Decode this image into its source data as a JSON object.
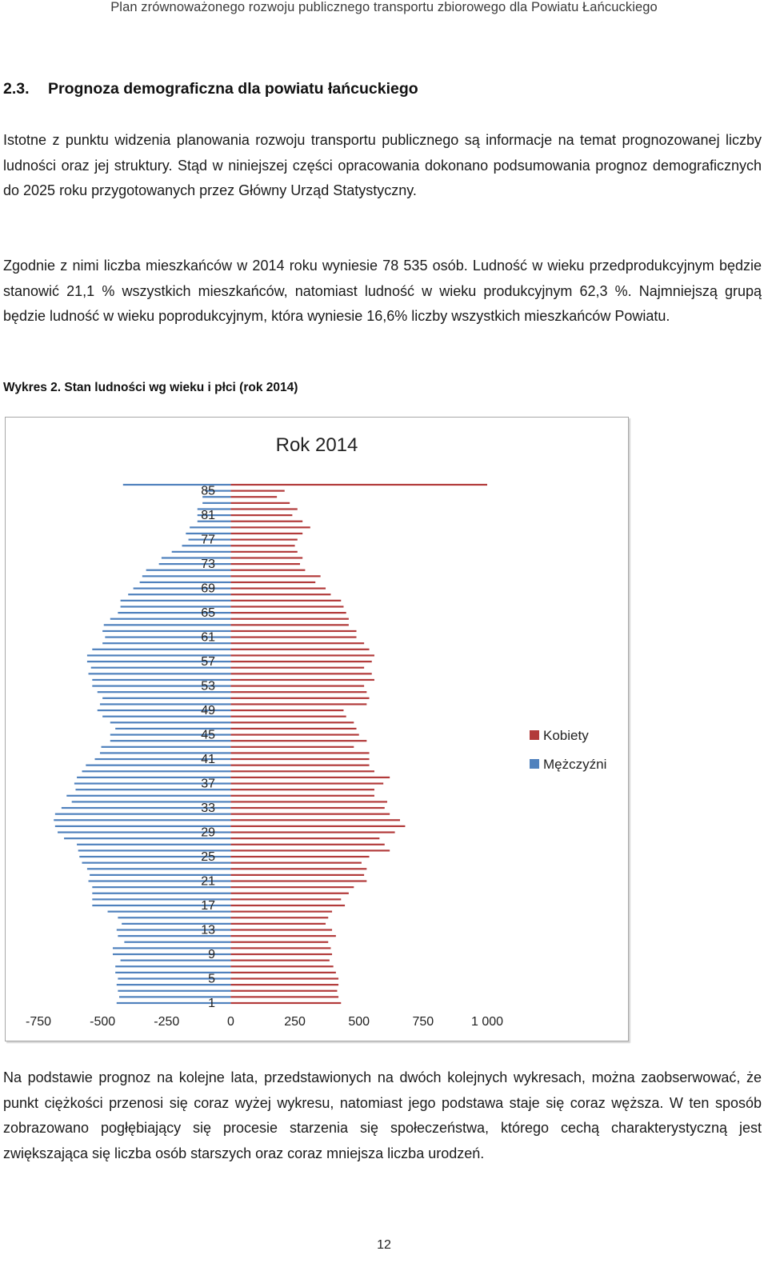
{
  "header": {
    "running_title": "Plan zrównoważonego rozwoju publicznego transportu zbiorowego dla Powiatu Łańcuckiego"
  },
  "section": {
    "number": "2.3.",
    "title": "Prognoza demograficzna dla powiatu łańcuckiego"
  },
  "paragraphs": {
    "p1": "Istotne z punktu widzenia planowania rozwoju transportu publicznego są informacje na temat prognozowanej liczby ludności oraz jej struktury. Stąd w niniejszej części opracowania dokonano podsumowania prognoz demograficznych do 2025 roku przygotowanych przez Główny Urząd Statystyczny.",
    "p2": "Zgodnie z nimi liczba mieszkańców w 2014 roku wyniesie 78 535 osób. Ludność w wieku przedprodukcyjnym będzie stanowić 21,1 % wszystkich mieszkańców, natomiast ludność w wieku produkcyjnym 62,3 %. Najmniejszą grupą będzie ludność w wieku poprodukcyjnym, która wyniesie 16,6% liczby wszystkich mieszkańców Powiatu.",
    "p3": "Na podstawie prognoz na kolejne lata, przedstawionych na dwóch kolejnych wykresach, można zaobserwować, że punkt ciężkości przenosi się coraz wyżej wykresu, natomiast jego podstawa staje się coraz węższa. W ten sposób zobrazowano pogłębiający się procesie starzenia się społeczeństwa, którego cechą charakterystyczną jest zwiększająca się liczba osób starszych oraz coraz mniejsza liczba urodzeń."
  },
  "figure": {
    "caption": "Wykres 2. Stan ludności wg wieku i płci (rok 2014)"
  },
  "page_number": "12",
  "chart_data": {
    "type": "bar",
    "orientation": "horizontal",
    "title": "Rok 2014",
    "categories": [
      1,
      2,
      3,
      4,
      5,
      6,
      7,
      8,
      9,
      10,
      11,
      12,
      13,
      14,
      15,
      16,
      17,
      18,
      19,
      20,
      21,
      22,
      23,
      24,
      25,
      26,
      27,
      28,
      29,
      30,
      31,
      32,
      33,
      34,
      35,
      36,
      37,
      38,
      39,
      40,
      41,
      42,
      43,
      44,
      45,
      46,
      47,
      48,
      49,
      50,
      51,
      52,
      53,
      54,
      55,
      56,
      57,
      58,
      59,
      60,
      61,
      62,
      63,
      64,
      65,
      66,
      67,
      68,
      69,
      70,
      71,
      72,
      73,
      74,
      75,
      76,
      77,
      78,
      79,
      80,
      81,
      82,
      83,
      84,
      85,
      86
    ],
    "category_tick_labels": [
      "1",
      "5",
      "9",
      "13",
      "17",
      "21",
      "25",
      "29",
      "33",
      "37",
      "41",
      "45",
      "49",
      "53",
      "57",
      "61",
      "65",
      "69",
      "73",
      "77",
      "81",
      "85"
    ],
    "x_tick_labels": [
      "-750",
      "-500",
      "-250",
      "0",
      "250",
      "500",
      "750",
      "1 000"
    ],
    "xlim": [
      -750,
      1000
    ],
    "series": [
      {
        "name": "Kobiety",
        "color": "#b23a3a",
        "values": [
          430,
          420,
          415,
          420,
          420,
          410,
          400,
          385,
          395,
          390,
          380,
          410,
          395,
          370,
          380,
          395,
          445,
          430,
          460,
          480,
          530,
          520,
          530,
          510,
          540,
          620,
          600,
          580,
          640,
          680,
          660,
          620,
          600,
          610,
          560,
          560,
          595,
          620,
          560,
          540,
          540,
          540,
          480,
          530,
          500,
          490,
          480,
          450,
          440,
          530,
          540,
          530,
          520,
          560,
          550,
          520,
          550,
          560,
          540,
          520,
          490,
          490,
          460,
          460,
          450,
          440,
          430,
          390,
          370,
          330,
          350,
          290,
          270,
          280,
          260,
          250,
          260,
          280,
          310,
          280,
          240,
          260,
          230,
          180,
          210,
          1000
        ]
      },
      {
        "name": "Mężczyźni",
        "color": "#4f81bd",
        "values": [
          -445,
          -435,
          -440,
          -445,
          -440,
          -450,
          -450,
          -430,
          -460,
          -460,
          -415,
          -440,
          -445,
          -425,
          -440,
          -480,
          -540,
          -540,
          -540,
          -540,
          -555,
          -550,
          -560,
          -580,
          -590,
          -595,
          -600,
          -650,
          -675,
          -685,
          -690,
          -685,
          -660,
          -620,
          -640,
          -605,
          -610,
          -600,
          -580,
          -565,
          -530,
          -510,
          -505,
          -470,
          -470,
          -450,
          -470,
          -500,
          -520,
          -510,
          -500,
          -520,
          -540,
          -540,
          -555,
          -545,
          -560,
          -560,
          -540,
          -500,
          -490,
          -500,
          -495,
          -470,
          -440,
          -430,
          -430,
          -400,
          -380,
          -355,
          -345,
          -330,
          -280,
          -270,
          -230,
          -190,
          -165,
          -175,
          -160,
          -130,
          -130,
          -130,
          -110,
          -110,
          -100,
          -420
        ]
      }
    ],
    "legend": {
      "position": "right",
      "entries": [
        "Kobiety",
        "Mężczyźni"
      ]
    },
    "grid": false
  }
}
